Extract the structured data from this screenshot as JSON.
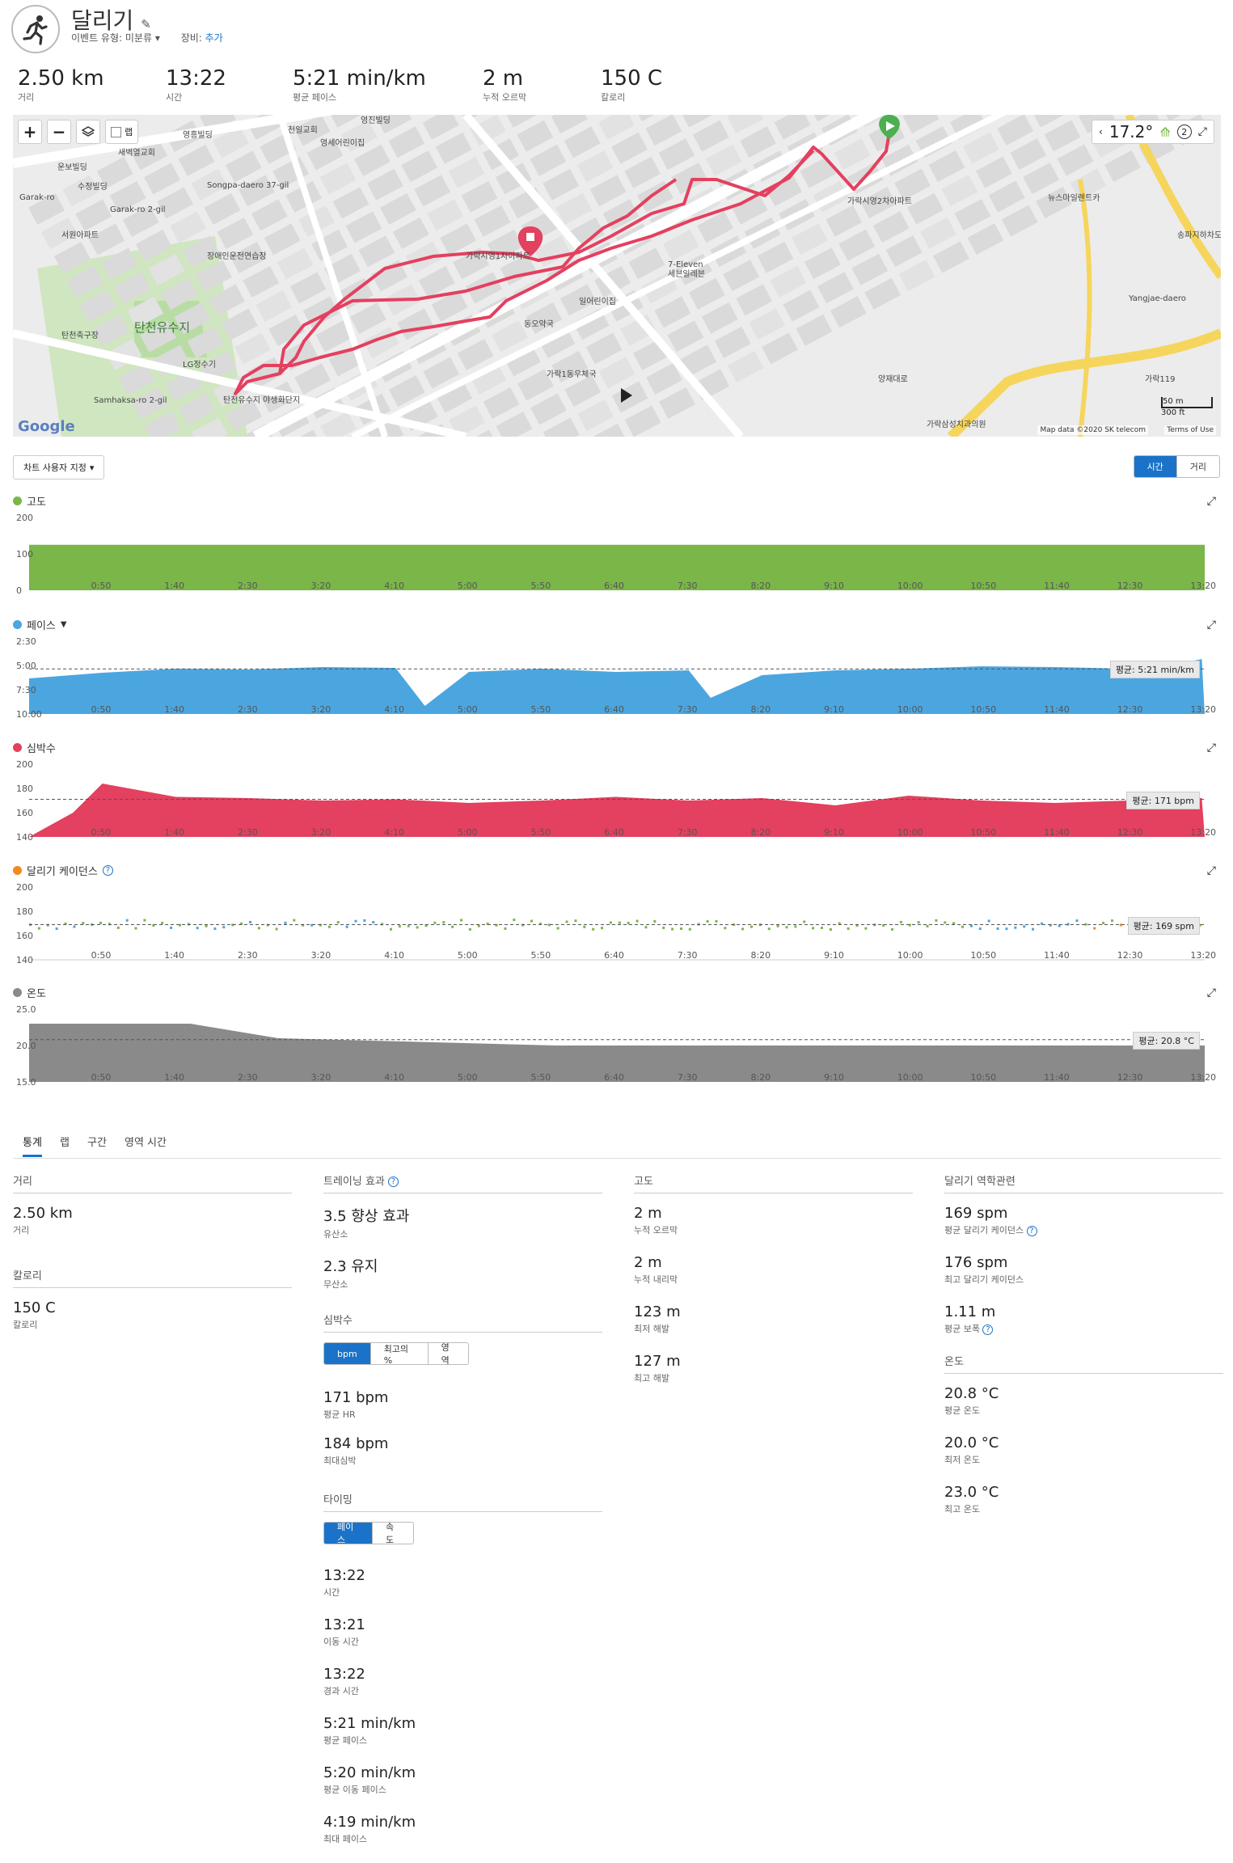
{
  "header": {
    "title": "달리기",
    "event_type_label": "이벤트 유형:",
    "event_type_value": "미분류",
    "gear_label": "장비:",
    "gear_add": "추가"
  },
  "summary": [
    {
      "value": "2.50 km",
      "label": "거리"
    },
    {
      "value": "13:22",
      "label": "시간"
    },
    {
      "value": "5:21 min/km",
      "label": "평균 페이스"
    },
    {
      "value": "2 m",
      "label": "누적 오르막"
    },
    {
      "value": "150 C",
      "label": "칼로리"
    }
  ],
  "map": {
    "temperature": "17.2°",
    "zoom_in": "+",
    "zoom_out": "−",
    "lap_label": "랩",
    "google": "Google",
    "attribution": "Map data ©2020 SK telecom",
    "terms": "Terms of Use",
    "scale_m": "50 m",
    "scale_ft": "300 ft",
    "labels": [
      "가락시영1차아파트",
      "가락시영2차아파트",
      "7-Eleven",
      "세븐일레븐",
      "동오약국",
      "가락1동우체국",
      "탄천유수지",
      "LG정수기",
      "장애인운전연습장",
      "탄천유수지 야생화단지",
      "영세어린이집",
      "천일교회",
      "영흥빌딩",
      "영진빌딩",
      "뉴스마일렌트카",
      "송파지하차도",
      "가락119",
      "가락삼성치과의원",
      "Songpa-daero 37-gil",
      "Garak-ro 2-gil",
      "Garak-ro",
      "Yangjae-daero",
      "양재대로",
      "Samhaksa-ro 2-gil",
      "서원아파트",
      "탄천축구장",
      "수정빌딩",
      "운보빌딩",
      "새벽열교회",
      "일어린이집"
    ]
  },
  "chart_customize": "차트 사용자 지정",
  "xaxis_toggle": {
    "time": "시간",
    "distance": "거리"
  },
  "x_ticks": [
    "0:50",
    "1:40",
    "2:30",
    "3:20",
    "4:10",
    "5:00",
    "5:50",
    "6:40",
    "7:30",
    "8:20",
    "9:10",
    "10:00",
    "10:50",
    "11:40",
    "12:30",
    "13:20"
  ],
  "charts": [
    {
      "key": "elevation",
      "title": "고도",
      "color": "#7ab648",
      "yticks": [
        "200",
        "100",
        "0"
      ],
      "avg": ""
    },
    {
      "key": "pace",
      "title": "페이스",
      "color": "#4ba6e0",
      "yticks": [
        "2:30",
        "5:00",
        "7:30",
        "10:00"
      ],
      "avg": "평균: 5:21 min/km"
    },
    {
      "key": "hr",
      "title": "심박수",
      "color": "#e4405f",
      "yticks": [
        "200",
        "180",
        "160",
        "140"
      ],
      "avg": "평균: 171 bpm"
    },
    {
      "key": "cadence",
      "title": "달리기 케이던스",
      "color": "#f08a24",
      "yticks": [
        "200",
        "180",
        "160",
        "140"
      ],
      "avg": "평균: 169 spm"
    },
    {
      "key": "temp",
      "title": "온도",
      "color": "#8a8a8a",
      "yticks": [
        "25.0",
        "20.0",
        "15.0"
      ],
      "avg": "평균: 20.8 °C"
    }
  ],
  "chart_data": [
    {
      "type": "area",
      "title": "고도",
      "x_unit": "time",
      "ylim": [
        0,
        200
      ],
      "x": [
        "0:00",
        "13:22"
      ],
      "values": [
        125,
        125
      ]
    },
    {
      "type": "area",
      "title": "페이스",
      "ylim_labels": [
        "2:30",
        "10:00"
      ],
      "x": [
        "0:00",
        "0:50",
        "1:40",
        "2:30",
        "3:20",
        "4:10",
        "4:30",
        "5:00",
        "5:50",
        "6:40",
        "7:30",
        "7:45",
        "8:20",
        "9:10",
        "10:00",
        "10:50",
        "11:40",
        "12:30",
        "13:00",
        "13:20"
      ],
      "values_min_per_km": [
        "6:20",
        "5:45",
        "5:20",
        "5:25",
        "5:10",
        "5:15",
        "9:10",
        "5:40",
        "5:20",
        "5:40",
        "5:30",
        "8:20",
        "6:00",
        "5:30",
        "5:20",
        "5:05",
        "5:10",
        "5:20",
        "5:00",
        "4:20"
      ],
      "average": "5:21"
    },
    {
      "type": "area",
      "title": "심박수",
      "ylim": [
        140,
        200
      ],
      "x": [
        "0:00",
        "0:30",
        "0:50",
        "1:40",
        "2:30",
        "3:20",
        "4:10",
        "5:00",
        "5:50",
        "6:40",
        "7:30",
        "8:20",
        "9:10",
        "10:00",
        "10:50",
        "11:40",
        "12:30",
        "13:20"
      ],
      "values": [
        140,
        160,
        184,
        173,
        172,
        170,
        171,
        168,
        170,
        173,
        170,
        172,
        166,
        174,
        170,
        168,
        170,
        172
      ],
      "average": 171
    },
    {
      "type": "scatter",
      "title": "달리기 케이던스",
      "ylim": [
        140,
        200
      ],
      "average": 169,
      "max": 176
    },
    {
      "type": "area",
      "title": "온도",
      "ylim": [
        15,
        25
      ],
      "x": [
        "0:00",
        "1:50",
        "2:50",
        "6:00",
        "13:22"
      ],
      "values": [
        23,
        23,
        21,
        20,
        20
      ],
      "average": 20.8
    }
  ],
  "tabs": [
    "통계",
    "랩",
    "구간",
    "영역 시간"
  ],
  "stats": {
    "distance_title": "거리",
    "distance_value": "2.50 km",
    "distance_label": "거리",
    "calories_title": "칼로리",
    "calories_value": "150 C",
    "calories_label": "칼로리",
    "training_title": "트레이닝 효과",
    "aerobic_value": "3.5 향상 효과",
    "aerobic_label": "유산소",
    "anaerobic_value": "2.3 유지",
    "anaerobic_label": "무산소",
    "hr_title": "심박수",
    "hr_toggle": [
      "bpm",
      "최고의 %",
      "영역"
    ],
    "avg_hr_value": "171 bpm",
    "avg_hr_label": "평균 HR",
    "max_hr_value": "184 bpm",
    "max_hr_label": "최대심박",
    "timing_title": "타이밍",
    "timing_toggle": [
      "페이스",
      "속도"
    ],
    "timing": [
      {
        "value": "13:22",
        "label": "시간"
      },
      {
        "value": "13:21",
        "label": "이동 시간"
      },
      {
        "value": "13:22",
        "label": "경과 시간"
      },
      {
        "value": "5:21 min/km",
        "label": "평균 페이스"
      },
      {
        "value": "5:20 min/km",
        "label": "평균 이동 페이스"
      },
      {
        "value": "4:19 min/km",
        "label": "최대 페이스"
      }
    ],
    "elev_title": "고도",
    "elev": [
      {
        "value": "2 m",
        "label": "누적 오르막"
      },
      {
        "value": "2 m",
        "label": "누적 내리막"
      },
      {
        "value": "123 m",
        "label": "최저 해발"
      },
      {
        "value": "127 m",
        "label": "최고 해발"
      }
    ],
    "dyn_title": "달리기 역학관련",
    "dyn": [
      {
        "value": "169 spm",
        "label": "평균 달리기 케이던스"
      },
      {
        "value": "176 spm",
        "label": "최고 달리기 케이던스"
      },
      {
        "value": "1.11 m",
        "label": "평균 보폭"
      }
    ],
    "temp_title": "온도",
    "temp": [
      {
        "value": "20.8 °C",
        "label": "평균 온도"
      },
      {
        "value": "20.0 °C",
        "label": "최저 온도"
      },
      {
        "value": "23.0 °C",
        "label": "최고 온도"
      }
    ]
  }
}
